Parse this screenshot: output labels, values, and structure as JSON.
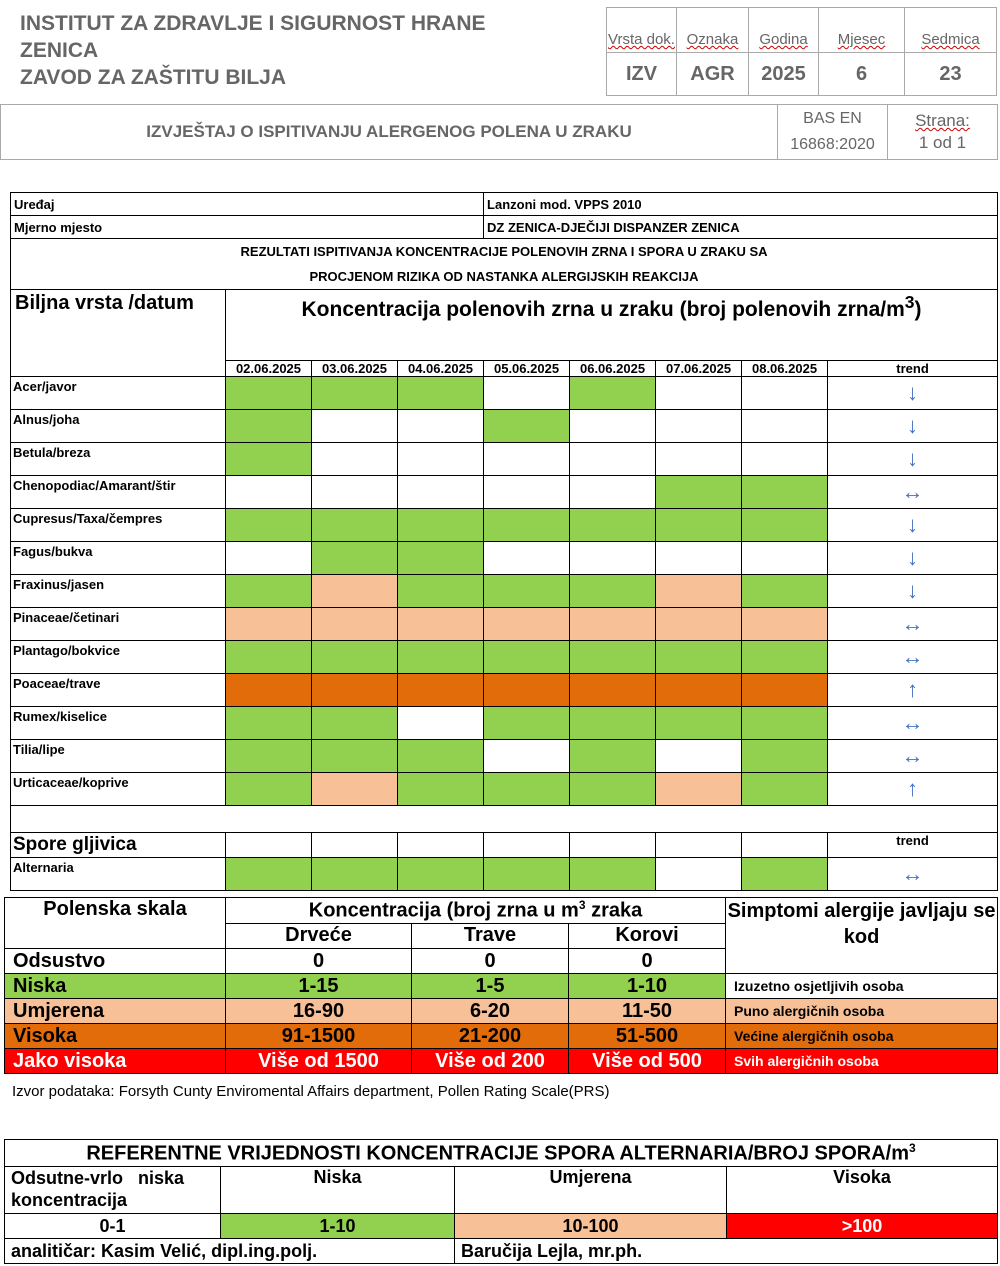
{
  "header": {
    "institute_line1": "INSTITUT ZA ZDRAVLJE I SIGURNOST HRANE",
    "institute_line2": "ZENICA",
    "institute_line3": "ZAVOD ZA ZAŠTITU BILJA",
    "codes": {
      "labels": [
        "Vrsta dok.",
        "Oznaka",
        "Godina",
        "Mjesec",
        "Sedmica"
      ],
      "values": [
        "IZV",
        "AGR",
        "2025",
        "6",
        "23"
      ]
    },
    "report_title": "IZVJEŠTAJ O ISPITIVANJU ALERGENOG POLENA U ZRAKU",
    "standard_line1": "BAS EN",
    "standard_line2": "16868:2020",
    "page_label": "Strana:",
    "page_value": "1 od 1"
  },
  "main": {
    "device_label": "Uređaj",
    "device_value": "Lanzoni mod. VPPS 2010",
    "site_label": "Mjerno mjesto",
    "site_value": "DZ ZENICA-DJEČIJI DISPANZER ZENICA",
    "results_title_line1": "REZULTATI ISPITIVANJA KONCENTRACIJE POLENOVIH ZRNA I SPORA U ZRAKU SA",
    "results_title_line2": "PROCJENOM RIZIKA OD NASTANKA ALERGIJSKIH REAKCIJA",
    "species_header": "Biljna vrsta /datum",
    "concentration_header": "Koncentracija polenovih zrna u zraku (broj polenovih zrna/m",
    "concentration_sup": "3",
    "concentration_close": ")",
    "dates": [
      "02.06.2025",
      "03.06.2025",
      "04.06.2025",
      "05.06.2025",
      "06.06.2025",
      "07.06.2025",
      "08.06.2025"
    ],
    "trend_label": "trend",
    "plants": [
      {
        "name": "Acer/javor",
        "levels": [
          "niska",
          "niska",
          "niska",
          "odsustvo",
          "niska",
          "odsustvo",
          "odsustvo"
        ],
        "trend": "down"
      },
      {
        "name": "Alnus/joha",
        "levels": [
          "niska",
          "odsustvo",
          "odsustvo",
          "niska",
          "odsustvo",
          "odsustvo",
          "odsustvo"
        ],
        "trend": "down"
      },
      {
        "name": "Betula/breza",
        "levels": [
          "niska",
          "odsustvo",
          "odsustvo",
          "odsustvo",
          "odsustvo",
          "odsustvo",
          "odsustvo"
        ],
        "trend": "down"
      },
      {
        "name": "Chenopodiac/Amarant/štir",
        "levels": [
          "odsustvo",
          "odsustvo",
          "odsustvo",
          "odsustvo",
          "odsustvo",
          "niska",
          "niska"
        ],
        "trend": "steady"
      },
      {
        "name": "Cupresus/Taxa/čempres",
        "levels": [
          "niska",
          "niska",
          "niska",
          "niska",
          "niska",
          "niska",
          "niska"
        ],
        "trend": "down"
      },
      {
        "name": "Fagus/bukva",
        "levels": [
          "odsustvo",
          "niska",
          "niska",
          "odsustvo",
          "odsustvo",
          "odsustvo",
          "odsustvo"
        ],
        "trend": "down"
      },
      {
        "name": "Fraxinus/jasen",
        "levels": [
          "niska",
          "umjerena",
          "niska",
          "niska",
          "niska",
          "umjerena",
          "niska"
        ],
        "trend": "down"
      },
      {
        "name": "Pinaceae/četinari",
        "levels": [
          "umjerena",
          "umjerena",
          "umjerena",
          "umjerena",
          "umjerena",
          "umjerena",
          "umjerena"
        ],
        "trend": "steady"
      },
      {
        "name": "Plantago/bokvice",
        "levels": [
          "niska",
          "niska",
          "niska",
          "niska",
          "niska",
          "niska",
          "niska"
        ],
        "trend": "steady"
      },
      {
        "name": "Poaceae/trave",
        "levels": [
          "visoka",
          "visoka",
          "visoka",
          "visoka",
          "visoka",
          "visoka",
          "visoka"
        ],
        "trend": "up"
      },
      {
        "name": "Rumex/kiselice",
        "levels": [
          "niska",
          "niska",
          "odsustvo",
          "niska",
          "niska",
          "niska",
          "niska"
        ],
        "trend": "steady"
      },
      {
        "name": "Tilia/lipe",
        "levels": [
          "niska",
          "niska",
          "niska",
          "odsustvo",
          "niska",
          "odsustvo",
          "niska"
        ],
        "trend": "steady"
      },
      {
        "name": "Urticaceae/koprive",
        "levels": [
          "niska",
          "umjerena",
          "niska",
          "niska",
          "niska",
          "umjerena",
          "niska"
        ],
        "trend": "up"
      }
    ],
    "spores_label": "Spore gljivica",
    "spores_trend_label": "trend",
    "spores": [
      {
        "name": "Alternaria",
        "levels": [
          "niska",
          "niska",
          "niska",
          "niska",
          "niska",
          "odsustvo",
          "niska"
        ],
        "trend": "steady"
      }
    ]
  },
  "level_colors": {
    "odsustvo": "#ffffff",
    "niska": "#92d050",
    "umjerena": "#f8c097",
    "visoka": "#e26b0a",
    "jako_visoka": "#ff0000"
  },
  "trend_icons": {
    "down": "arrow-down-icon",
    "up": "arrow-up-icon",
    "steady": "arrow-left-right-icon"
  },
  "scale": {
    "title": "Polenska skala",
    "conc_header": "Koncentracija (broj zrna u m",
    "conc_sup": "3",
    "conc_after": " zraka",
    "col_trees": "Drveće",
    "col_grass": "Trave",
    "col_weeds": "Korovi",
    "symptoms_header": "Simptomi alergije javljaju se kod",
    "rows": [
      {
        "level": "Odsustvo",
        "trees": "0",
        "grass": "0",
        "weeds": "0",
        "symptoms": ""
      },
      {
        "level": "Niska",
        "trees": "1-15",
        "grass": "1-5",
        "weeds": "1-10",
        "symptoms": "Izuzetno osjetljivih osoba"
      },
      {
        "level": "Umjerena",
        "trees": "16-90",
        "grass": "6-20",
        "weeds": "11-50",
        "symptoms": "Puno alergičnih osoba"
      },
      {
        "level": "Visoka",
        "trees": "91-1500",
        "grass": "21-200",
        "weeds": "51-500",
        "symptoms": "Većine alergičnih osoba"
      },
      {
        "level": "Jako visoka",
        "trees": "Više od 1500",
        "grass": "Više od 200",
        "weeds": "Više od 500",
        "symptoms": "Svih alergičnih osoba"
      }
    ],
    "source": "Izvor podataka: Forsyth Cunty Enviromental Affairs department, Pollen Rating Scale(PRS)"
  },
  "reference": {
    "title": "REFERENTNE VRIJEDNOSTI KONCENTRACIJE SPORA ALTERNARIA/BROJ SPORA/m",
    "title_sup": "3",
    "col1_line1": "Odsutne-vrlo   niska",
    "col1_line2": "koncentracija",
    "col2": "Niska",
    "col3": "Umjerena",
    "col4": "Visoka",
    "val1": "0-1",
    "val2": "1-10",
    "val3": "10-100",
    "val4": ">100",
    "analyst1": "analitičar: Kasim Velić,  dipl.ing.polj.",
    "analyst2": "Baručija Lejla,  mr.ph."
  }
}
